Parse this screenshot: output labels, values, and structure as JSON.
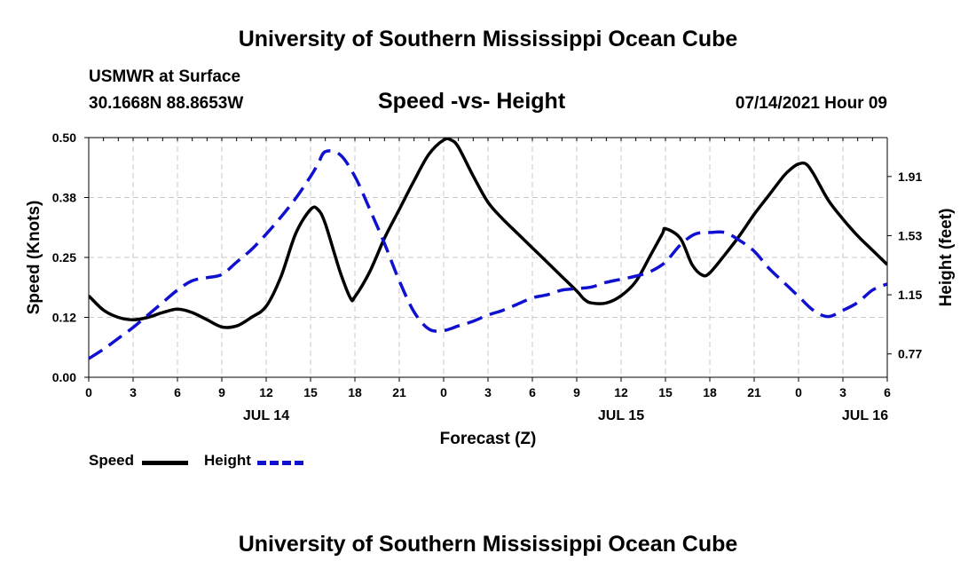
{
  "page": {
    "title_top": "University of Southern Mississippi Ocean Cube",
    "title_bottom": "University of Southern Mississippi Ocean Cube",
    "station": "USMWR at Surface",
    "coordinates": "30.1668N  88.8653W",
    "subtitle": "Speed -vs- Height",
    "datetime": "07/14/2021 Hour 09"
  },
  "legend": {
    "speed_label": "Speed",
    "height_label": "Height"
  },
  "colors": {
    "speed": "#000000",
    "height": "#1010d0",
    "grid": "#c8c8c8"
  },
  "chart_data": {
    "type": "line",
    "xlabel": "Forecast (Z)",
    "ylabel_left": "Speed (Knots)",
    "ylabel_right": "Height (feet)",
    "xlim": [
      0,
      54
    ],
    "ylim_left": [
      0,
      0.5
    ],
    "ylim_right": [
      0.62,
      2.16
    ],
    "x_ticks": [
      0,
      3,
      6,
      9,
      12,
      15,
      18,
      21,
      24,
      27,
      30,
      33,
      36,
      39,
      42,
      45,
      48,
      51,
      54
    ],
    "x_tick_labels": [
      "0",
      "3",
      "6",
      "9",
      "12",
      "15",
      "18",
      "21",
      "0",
      "3",
      "6",
      "9",
      "12",
      "15",
      "18",
      "21",
      "0",
      "3",
      "6"
    ],
    "date_labels": [
      {
        "x": 12,
        "text": "JUL 14"
      },
      {
        "x": 36,
        "text": "JUL 15"
      },
      {
        "x": 52.5,
        "text": "JUL 16"
      }
    ],
    "y_left_ticks": [
      0.0,
      0.125,
      0.25,
      0.375,
      0.5
    ],
    "y_left_tick_labels": [
      "0.00",
      "0.12",
      "0.25",
      "0.38",
      "0.50"
    ],
    "y_right_ticks": [
      0.77,
      1.15,
      1.53,
      1.91
    ],
    "y_right_tick_labels": [
      "0.77",
      "1.15",
      "1.53",
      "1.91"
    ],
    "grid": true,
    "series": [
      {
        "name": "Speed",
        "axis": "left",
        "style": "solid",
        "x": [
          0,
          1,
          2,
          3,
          4,
          5,
          6,
          7,
          8,
          9,
          10,
          11,
          12,
          13,
          14,
          15,
          15.5,
          16,
          17,
          17.7,
          18,
          19,
          20,
          21,
          22,
          23,
          24,
          24.5,
          25,
          26,
          27,
          28,
          29,
          30,
          31,
          32,
          33,
          33.5,
          34,
          35,
          36,
          37,
          38,
          38.8,
          39,
          40,
          40.8,
          41.5,
          42,
          43,
          44,
          45,
          46,
          47,
          47.5,
          48,
          48.5,
          49,
          50,
          51,
          52,
          53,
          54
        ],
        "y": [
          0.17,
          0.14,
          0.125,
          0.12,
          0.125,
          0.135,
          0.142,
          0.135,
          0.12,
          0.105,
          0.107,
          0.125,
          0.148,
          0.21,
          0.3,
          0.35,
          0.35,
          0.32,
          0.22,
          0.165,
          0.168,
          0.22,
          0.29,
          0.35,
          0.41,
          0.465,
          0.495,
          0.495,
          0.48,
          0.42,
          0.365,
          0.33,
          0.3,
          0.27,
          0.24,
          0.21,
          0.18,
          0.163,
          0.155,
          0.155,
          0.17,
          0.2,
          0.255,
          0.3,
          0.31,
          0.29,
          0.235,
          0.213,
          0.218,
          0.255,
          0.295,
          0.34,
          0.38,
          0.42,
          0.435,
          0.445,
          0.445,
          0.425,
          0.37,
          0.33,
          0.295,
          0.265,
          0.235
        ]
      },
      {
        "name": "Height",
        "axis": "right",
        "style": "dashed",
        "x": [
          0,
          1,
          2,
          3,
          4,
          5,
          6,
          7,
          8,
          9,
          10,
          11,
          12,
          13,
          14,
          15,
          15.5,
          16,
          17,
          18,
          19,
          20,
          21,
          22,
          23,
          24,
          25,
          26,
          27,
          28,
          29,
          30,
          31,
          32,
          33,
          34,
          35,
          36,
          37,
          38,
          39,
          40,
          41,
          42,
          43,
          44,
          45,
          46,
          47,
          48,
          49,
          50,
          51,
          52,
          53,
          54
        ],
        "y": [
          0.74,
          0.8,
          0.87,
          0.94,
          1.02,
          1.1,
          1.18,
          1.24,
          1.26,
          1.28,
          1.36,
          1.44,
          1.54,
          1.65,
          1.77,
          1.91,
          1.99,
          2.07,
          2.05,
          1.91,
          1.7,
          1.48,
          1.24,
          1.04,
          0.93,
          0.92,
          0.95,
          0.98,
          1.02,
          1.05,
          1.09,
          1.13,
          1.15,
          1.18,
          1.19,
          1.2,
          1.23,
          1.25,
          1.27,
          1.3,
          1.36,
          1.47,
          1.54,
          1.55,
          1.55,
          1.5,
          1.43,
          1.32,
          1.23,
          1.14,
          1.05,
          1.01,
          1.05,
          1.1,
          1.18,
          1.22
        ]
      }
    ]
  }
}
